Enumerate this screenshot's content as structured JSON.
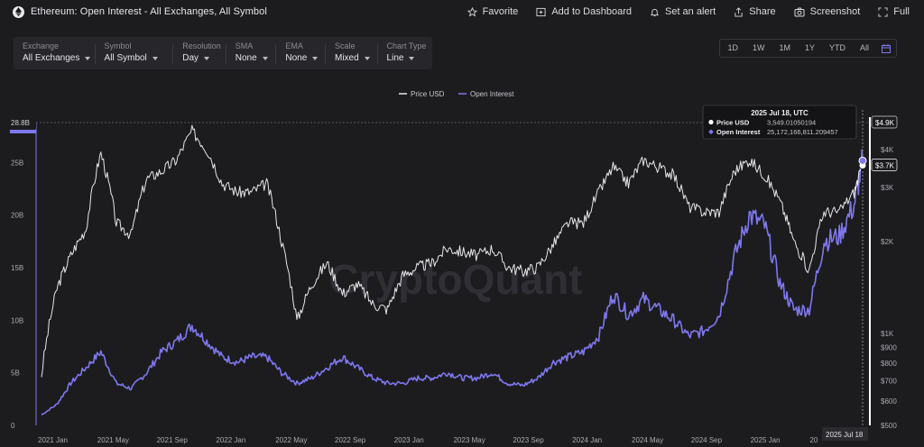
{
  "header": {
    "title": "Ethereum: Open Interest - All Exchanges, All Symbol",
    "actions": [
      {
        "label": "Favorite",
        "icon": "star-icon"
      },
      {
        "label": "Add to Dashboard",
        "icon": "add-dashboard-icon"
      },
      {
        "label": "Set an alert",
        "icon": "bell-icon"
      },
      {
        "label": "Share",
        "icon": "share-icon"
      },
      {
        "label": "Screenshot",
        "icon": "camera-icon"
      },
      {
        "label": "Full",
        "icon": "fullscreen-icon"
      }
    ]
  },
  "controls": [
    {
      "label": "Exchange",
      "value": "All Exchanges"
    },
    {
      "label": "Symbol",
      "value": "All Symbol"
    },
    {
      "label": "Resolution",
      "value": "Day"
    },
    {
      "label": "SMA",
      "value": "None"
    },
    {
      "label": "EMA",
      "value": "None"
    },
    {
      "label": "Scale",
      "value": "Mixed"
    },
    {
      "label": "Chart Type",
      "value": "Line"
    }
  ],
  "ranges": [
    "1D",
    "1W",
    "1M",
    "1Y",
    "YTD",
    "All"
  ],
  "watermark": "CryptoQuant",
  "colors": {
    "price": "#e6e6ea",
    "oi": "#7f77ee",
    "bg": "#1c1c1f",
    "axisTag": "#ffffff"
  },
  "chart_data": {
    "type": "line",
    "legend": [
      "Price USD",
      "Open Interest"
    ],
    "legend_position": "top-center",
    "x_labels": [
      "2021 Jan",
      "2021 May",
      "2021 Sep",
      "2022 Jan",
      "2022 May",
      "2022 Sep",
      "2023 Jan",
      "2023 May",
      "2023 Sep",
      "2024 Jan",
      "2024 May",
      "2024 Sep",
      "2025 Jan",
      "20"
    ],
    "left_axis": {
      "ticks": [
        "0",
        "5B",
        "10B",
        "15B",
        "20B",
        "25B"
      ],
      "ylim": [
        0,
        28800000000.0
      ],
      "max_label": "28.8B"
    },
    "right_axis": {
      "scale": "log",
      "ticks": [
        "$500",
        "$600",
        "$700",
        "$800",
        "$900",
        "$1K",
        "$2K",
        "$3K",
        "$4K"
      ],
      "max_label": "$4.9K",
      "ylim": [
        500,
        4900
      ]
    },
    "x": [
      "2021-01",
      "2021-02",
      "2021-03",
      "2021-04",
      "2021-05",
      "2021-06",
      "2021-07",
      "2021-08",
      "2021-09",
      "2021-10",
      "2021-11",
      "2021-12",
      "2022-01",
      "2022-02",
      "2022-03",
      "2022-04",
      "2022-05",
      "2022-06",
      "2022-07",
      "2022-08",
      "2022-09",
      "2022-10",
      "2022-11",
      "2022-12",
      "2023-01",
      "2023-02",
      "2023-03",
      "2023-04",
      "2023-05",
      "2023-06",
      "2023-07",
      "2023-08",
      "2023-09",
      "2023-10",
      "2023-11",
      "2023-12",
      "2024-01",
      "2024-02",
      "2024-03",
      "2024-04",
      "2024-05",
      "2024-06",
      "2024-07",
      "2024-08",
      "2024-09",
      "2024-10",
      "2024-11",
      "2024-12",
      "2025-01",
      "2025-02",
      "2025-03",
      "2025-04",
      "2025-05",
      "2025-06",
      "2025-07",
      "2025-07-18"
    ],
    "series": [
      {
        "name": "Price USD",
        "axis": "right",
        "values": [
          730,
          1400,
          1800,
          2200,
          3900,
          2300,
          2100,
          3200,
          3400,
          3700,
          4600,
          4000,
          3100,
          2900,
          2900,
          3100,
          2000,
          1100,
          1450,
          1700,
          1350,
          1450,
          1250,
          1200,
          1550,
          1650,
          1700,
          1900,
          1850,
          1800,
          1900,
          1650,
          1600,
          1650,
          1950,
          2300,
          2300,
          2900,
          3500,
          3100,
          3700,
          3500,
          3300,
          2600,
          2500,
          2500,
          3400,
          3700,
          3300,
          2700,
          2000,
          1600,
          2500,
          2500,
          2900,
          3549
        ]
      },
      {
        "name": "Open Interest",
        "axis": "left",
        "values": [
          1000000000.0,
          2000000000.0,
          4000000000.0,
          5500000000.0,
          7000000000.0,
          4000000000.0,
          3500000000.0,
          5000000000.0,
          7000000000.0,
          8000000000.0,
          9500000000.0,
          8000000000.0,
          6500000000.0,
          6000000000.0,
          6500000000.0,
          6500000000.0,
          5000000000.0,
          4000000000.0,
          4500000000.0,
          5500000000.0,
          6500000000.0,
          5500000000.0,
          4500000000.0,
          4000000000.0,
          4000000000.0,
          4500000000.0,
          4500000000.0,
          5000000000.0,
          4500000000.0,
          4500000000.0,
          5000000000.0,
          4000000000.0,
          3800000000.0,
          4500000000.0,
          6000000000.0,
          6500000000.0,
          7000000000.0,
          8500000000.0,
          12500000000.0,
          10500000000.0,
          12000000000.0,
          11000000000.0,
          10000000000.0,
          8500000000.0,
          9000000000.0,
          10500000000.0,
          16000000000.0,
          20000000000.0,
          19000000000.0,
          13500000000.0,
          11000000000.0,
          11000000000.0,
          17500000000.0,
          18000000000.0,
          21000000000.0,
          25170000000.0
        ]
      }
    ],
    "tooltip": {
      "date": "2025 Jul 18, UTC",
      "rows": [
        {
          "name": "Price USD",
          "value": "3,549.01050194"
        },
        {
          "name": "Open Interest",
          "value": "25,172,166,811.209457"
        }
      ]
    },
    "crosshair_label": "2025 Jul 18",
    "price_tag": "$3.7K"
  }
}
